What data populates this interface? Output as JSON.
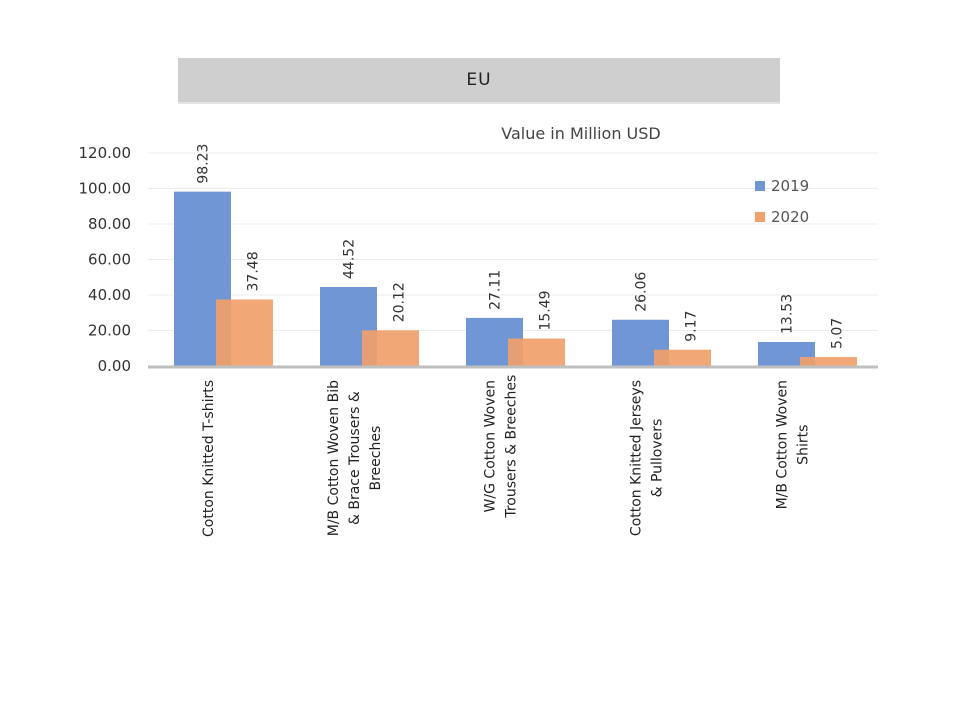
{
  "header": {
    "title": "EU"
  },
  "chart_data": {
    "type": "bar",
    "title": "EU",
    "subtitle": "Value in Million USD",
    "xlabel": "",
    "ylabel": "",
    "ylim": [
      0,
      120
    ],
    "yticks": [
      "0.00",
      "20.00",
      "40.00",
      "60.00",
      "80.00",
      "100.00",
      "120.00"
    ],
    "ytick_values": [
      0,
      20,
      40,
      60,
      80,
      100,
      120
    ],
    "grid": true,
    "legend_position": "top-right",
    "categories": [
      [
        "Cotton Knitted  T-shirts"
      ],
      [
        "M/B Cotton Woven Bib",
        "& Brace Trousers &",
        "Breeches"
      ],
      [
        "W/G Cotton Woven",
        "Trousers & Breeches"
      ],
      [
        "Cotton Knitted  Jerseys",
        "& Pullovers"
      ],
      [
        "M/B Cotton Woven",
        "Shirts"
      ]
    ],
    "series": [
      {
        "name": "2019",
        "color": "#7096d6",
        "values": [
          98.23,
          44.52,
          27.11,
          26.06,
          13.53
        ],
        "labels": [
          "98.23",
          "44.52",
          "27.11",
          "26.06",
          "13.53"
        ]
      },
      {
        "name": "2020",
        "color": "#f0a06a",
        "values": [
          37.48,
          20.12,
          15.49,
          9.17,
          5.07
        ],
        "labels": [
          "37.48",
          "20.12",
          "15.49",
          "9.17",
          "5.07"
        ]
      }
    ]
  }
}
